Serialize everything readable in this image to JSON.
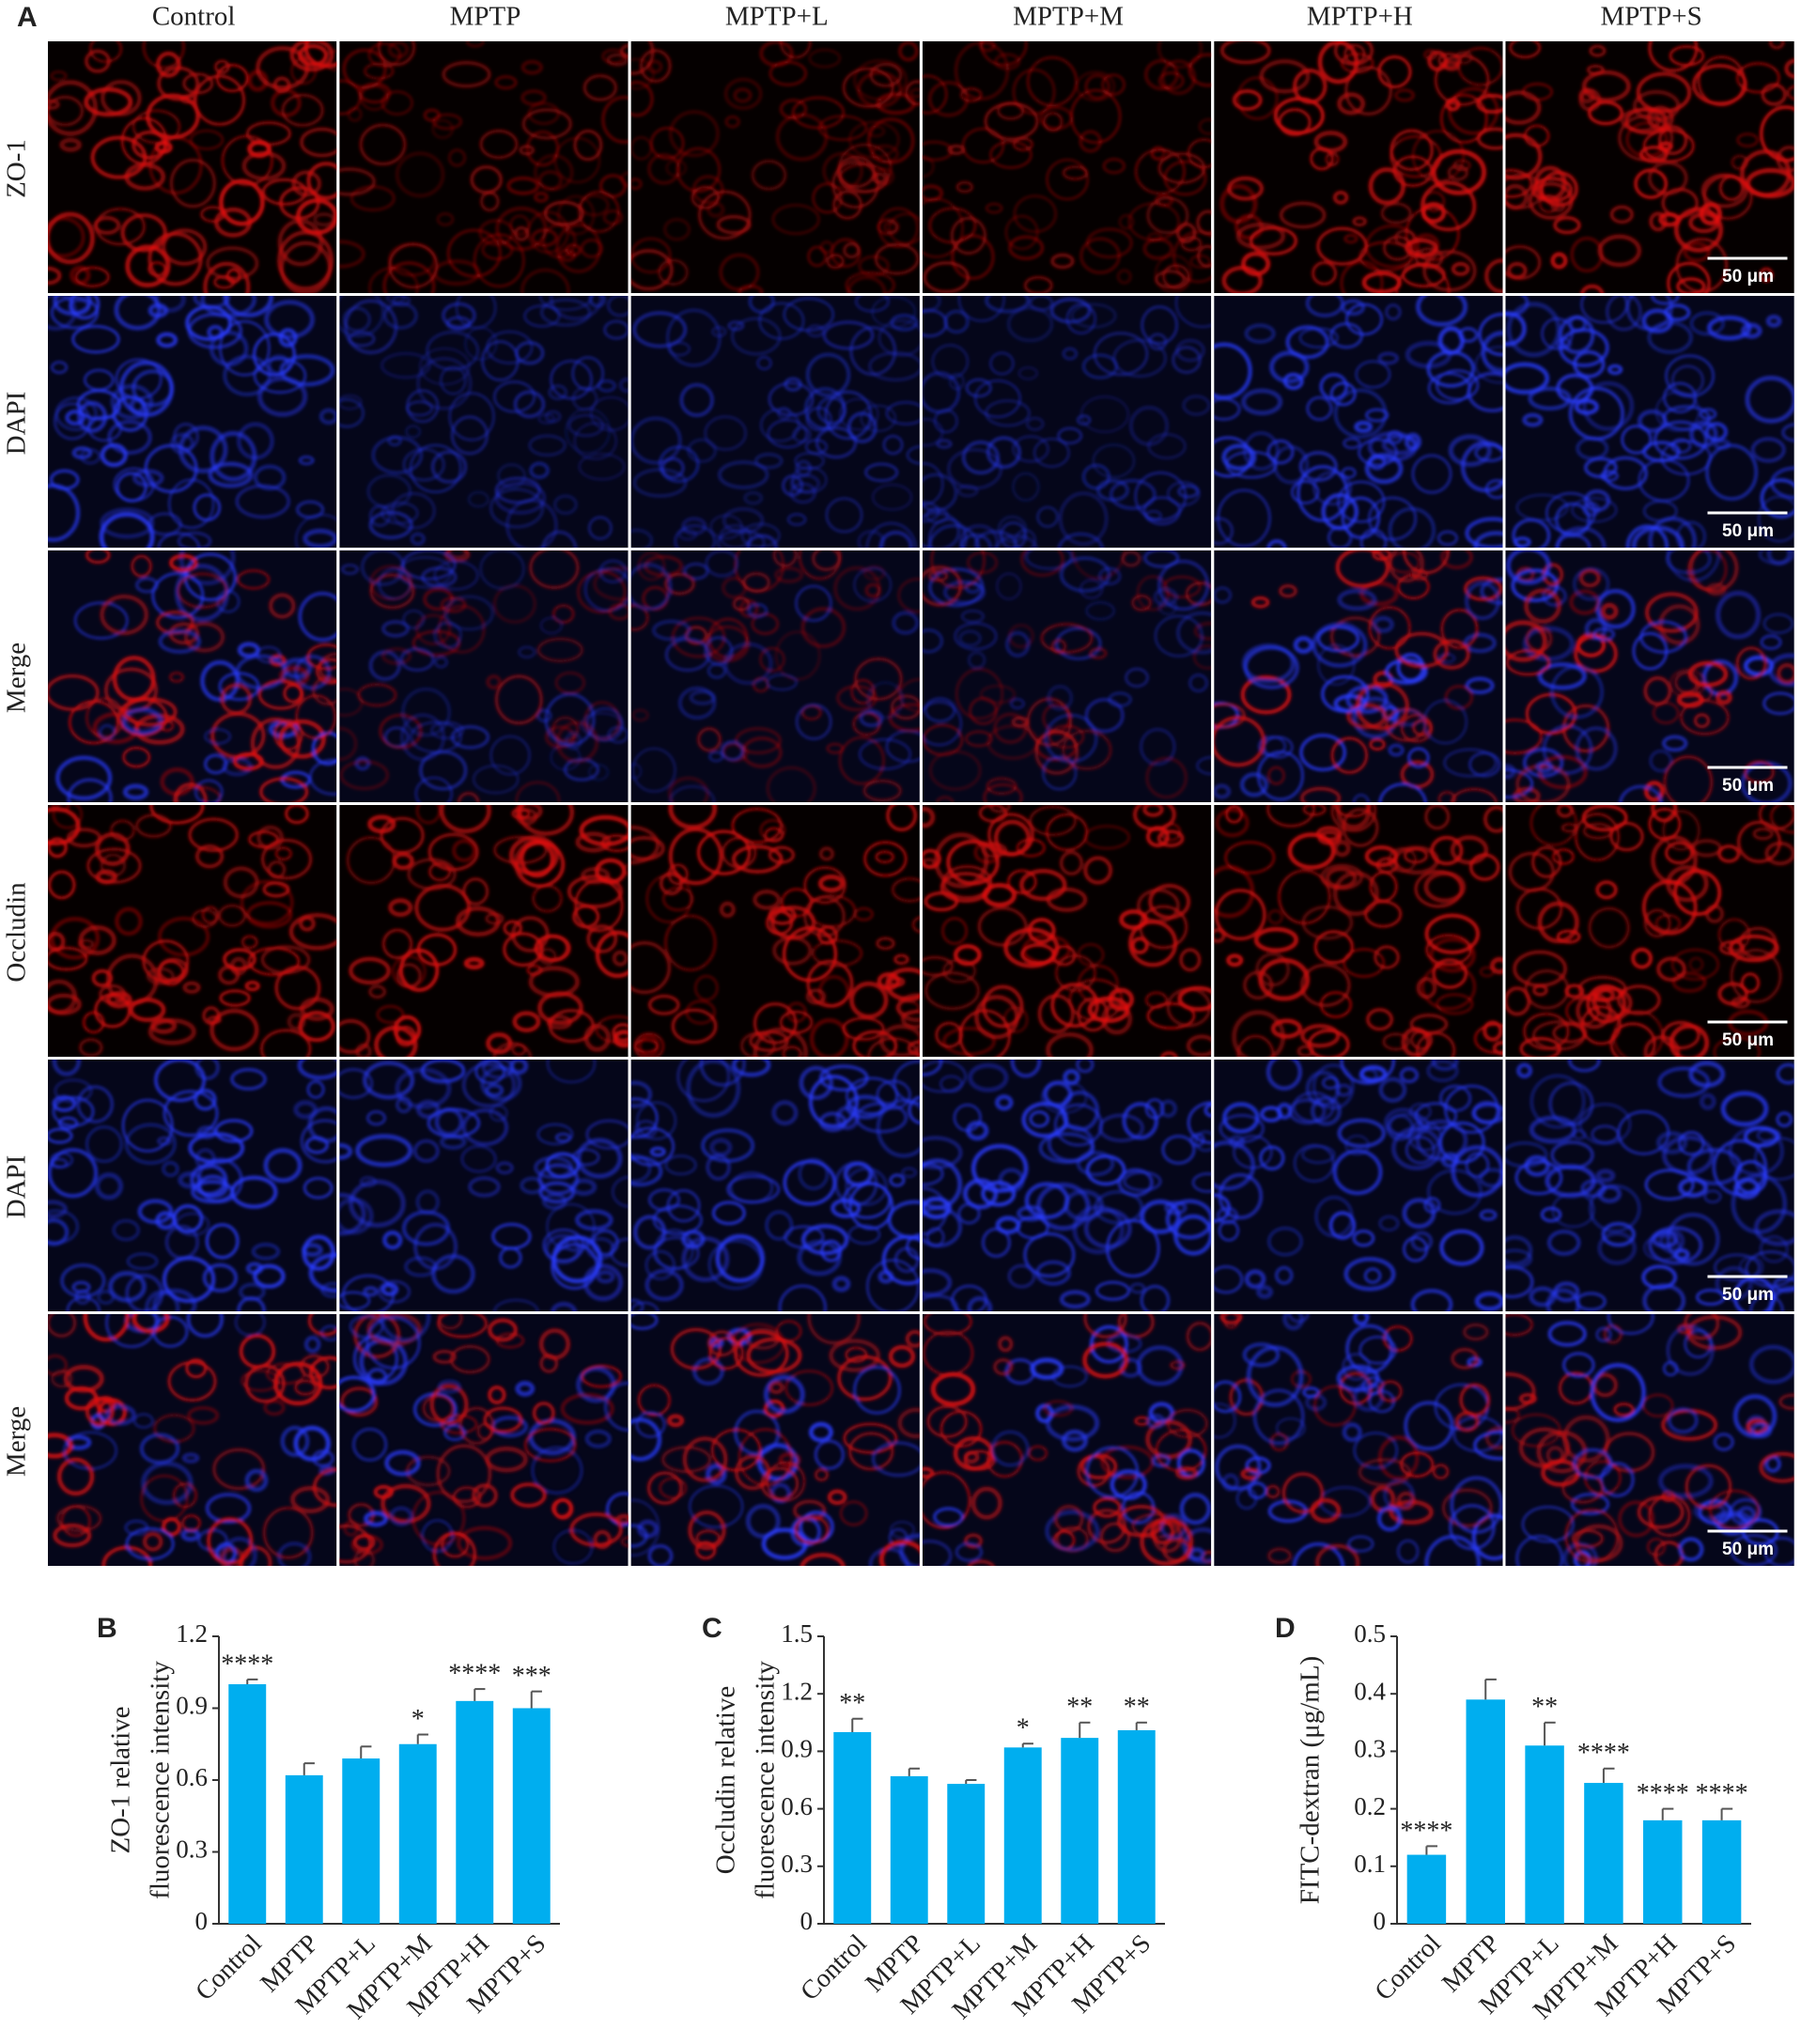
{
  "panel_a": {
    "label": "A",
    "columns": [
      "Control",
      "MPTP",
      "MPTP+L",
      "MPTP+M",
      "MPTP+H",
      "MPTP+S"
    ],
    "rows": [
      "ZO-1",
      "DAPI",
      "Merge",
      "Occludin",
      "DAPI",
      "Merge"
    ],
    "scale_bar": "50 μm"
  },
  "chart_data": [
    {
      "type": "bar",
      "panel_label": "B",
      "ylabel": [
        "ZO-1 relative",
        "fluorescence intensity"
      ],
      "categories": [
        "Control",
        "MPTP",
        "MPTP+L",
        "MPTP+M",
        "MPTP+H",
        "MPTP+S"
      ],
      "values": [
        1.0,
        0.62,
        0.69,
        0.75,
        0.93,
        0.9
      ],
      "errors": [
        0.02,
        0.05,
        0.05,
        0.04,
        0.05,
        0.07
      ],
      "annotations": [
        "****",
        null,
        null,
        "*",
        "****",
        "***"
      ],
      "color": "#00aeef",
      "ylim": [
        0,
        1.2
      ],
      "yticks": [
        0,
        0.3,
        0.6,
        0.9,
        1.2
      ]
    },
    {
      "type": "bar",
      "panel_label": "C",
      "ylabel": [
        "Occludin relative",
        "fluorescence intensity"
      ],
      "categories": [
        "Control",
        "MPTP",
        "MPTP+L",
        "MPTP+M",
        "MPTP+H",
        "MPTP+S"
      ],
      "values": [
        1.0,
        0.77,
        0.73,
        0.92,
        0.97,
        1.01
      ],
      "errors": [
        0.07,
        0.04,
        0.02,
        0.02,
        0.08,
        0.04
      ],
      "annotations": [
        "**",
        null,
        null,
        "*",
        "**",
        "**"
      ],
      "color": "#00aeef",
      "ylim": [
        0,
        1.5
      ],
      "yticks": [
        0,
        0.3,
        0.6,
        0.9,
        1.2,
        1.5
      ]
    },
    {
      "type": "bar",
      "panel_label": "D",
      "ylabel": [
        "FITC-dextran (μg/mL)"
      ],
      "categories": [
        "Control",
        "MPTP",
        "MPTP+L",
        "MPTP+M",
        "MPTP+H",
        "MPTP+S"
      ],
      "values": [
        0.12,
        0.39,
        0.31,
        0.245,
        0.18,
        0.18
      ],
      "errors": [
        0.015,
        0.035,
        0.04,
        0.025,
        0.02,
        0.02
      ],
      "annotations": [
        "****",
        null,
        "**",
        "****",
        "****",
        "****"
      ],
      "color": "#00aeef",
      "ylim": [
        0,
        0.5
      ],
      "yticks": [
        0,
        0.1,
        0.2,
        0.3,
        0.4,
        0.5
      ]
    }
  ]
}
